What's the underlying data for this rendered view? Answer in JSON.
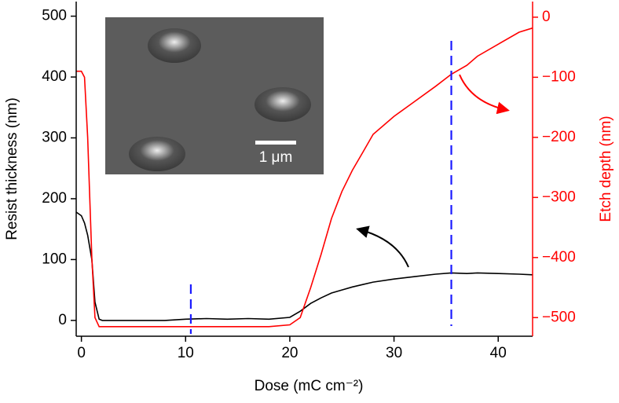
{
  "chart_data": {
    "type": "line",
    "xlabel": "Dose (mC cm⁻²)",
    "ylabel": "Resist thickness (nm)",
    "y2label": "Etch depth (nm)",
    "inset_label": "1 μm",
    "xlim": [
      -0.5,
      43.3
    ],
    "ylim": [
      -26,
      524
    ],
    "y2lim": [
      -531,
      26
    ],
    "xticks": [
      0,
      10,
      20,
      30,
      40
    ],
    "yticks": [
      0,
      100,
      200,
      300,
      400,
      500
    ],
    "y2ticks": [
      0,
      {
        "value": -100,
        "label": "−100"
      },
      {
        "value": -200,
        "label": "−200"
      },
      {
        "value": -300,
        "label": "−300"
      },
      {
        "value": -400,
        "label": "−400"
      },
      {
        "value": -500,
        "label": "−500"
      }
    ],
    "vlines": [
      {
        "x": 10.5,
        "color": "#1a1aff"
      },
      {
        "x": 35.5,
        "color": "#1a1aff"
      }
    ],
    "x": [
      -0.5,
      0,
      0.3,
      0.6,
      1,
      1.3,
      1.7,
      2,
      4,
      6,
      8,
      10,
      12,
      14,
      16,
      18,
      20,
      21,
      22,
      23,
      24,
      25,
      26,
      27,
      28,
      30,
      32,
      34,
      35.5,
      37,
      38,
      40,
      42,
      43.3
    ],
    "series": [
      {
        "color": "#000000",
        "axis": "y",
        "values": [
          178,
          172,
          160,
          140,
          100,
          30,
          2,
          0,
          0,
          0,
          0,
          2,
          3,
          2,
          3,
          2,
          5,
          15,
          28,
          37,
          45,
          50,
          55,
          59,
          63,
          68,
          72,
          76,
          78,
          77,
          78,
          77,
          76,
          75
        ]
      },
      {
        "color": "#ff0000",
        "axis": "y2",
        "values": [
          -90,
          -90,
          -100,
          -200,
          -400,
          -500,
          -515,
          -515,
          -515,
          -515,
          -515,
          -515,
          -515,
          -515,
          -515,
          -515,
          -512,
          -500,
          -450,
          -395,
          -335,
          -290,
          -255,
          -225,
          -195,
          -165,
          -140,
          -115,
          -95,
          -80,
          -65,
          -45,
          -25,
          -18
        ]
      }
    ]
  }
}
